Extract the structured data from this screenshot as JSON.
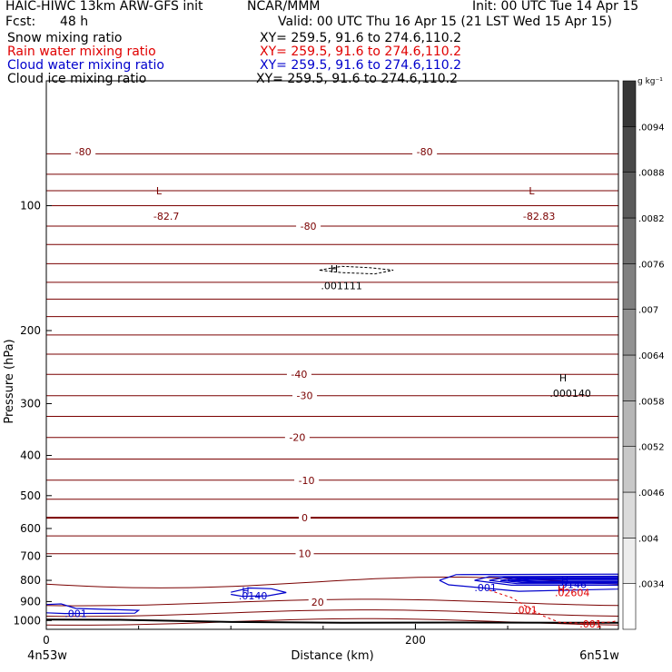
{
  "header": {
    "model": "HAIC-HIWC 13km ARW-GFS init",
    "org": "NCAR/MMM",
    "init": "Init: 00 UTC Tue 14 Apr 15",
    "fcst_label": "Fcst:",
    "fcst_value": "48 h",
    "valid": "Valid: 00 UTC Thu 16 Apr 15 (21 LST Wed 15 Apr 15)",
    "fields": [
      {
        "label": "Snow mixing ratio",
        "xy": "XY= 259.5, 91.6 to 274.6,110.2",
        "color": "#000000"
      },
      {
        "label": "Rain water mixing ratio",
        "xy": "XY= 259.5, 91.6 to 274.6,110.2",
        "color": "#e00000"
      },
      {
        "label": "Cloud water mixing ratio",
        "xy": "XY= 259.5, 91.6 to 274.6,110.2",
        "color": "#0000cc"
      },
      {
        "label": "Cloud ice mixing ratio",
        "xy": "XY= 259.5, 91.6 to 274.6,110.2",
        "color": "#000000"
      }
    ]
  },
  "chart_data": {
    "type": "contour",
    "title": "",
    "xlabel": "Distance (km)",
    "ylabel": "Pressure (hPa)",
    "xlim": [
      0,
      310
    ],
    "ylim": [
      50,
      1050
    ],
    "y_log": true,
    "x_ticks": [
      0,
      200
    ],
    "y_ticks": [
      100,
      200,
      300,
      400,
      500,
      600,
      700,
      800,
      900,
      1000
    ],
    "x_endpoints": {
      "left": "4n53w",
      "right": "6n51w"
    },
    "colors": {
      "temperature": "#7a0000",
      "cloud_water": "#0000cc",
      "rain": "#e00000",
      "ground": "#000000"
    },
    "temperature_contours": [
      {
        "p": 75,
        "label": "-80"
      },
      {
        "p": 84,
        "label": ""
      },
      {
        "p": 92,
        "label": ""
      },
      {
        "p": 100,
        "label": ""
      },
      {
        "p": 112,
        "label": "-80"
      },
      {
        "p": 124,
        "label": ""
      },
      {
        "p": 138,
        "label": ""
      },
      {
        "p": 153,
        "label": ""
      },
      {
        "p": 168,
        "label": ""
      },
      {
        "p": 185,
        "label": ""
      },
      {
        "p": 205,
        "label": ""
      },
      {
        "p": 228,
        "label": ""
      },
      {
        "p": 255,
        "label": "-40"
      },
      {
        "p": 287,
        "label": "-30"
      },
      {
        "p": 322,
        "label": ""
      },
      {
        "p": 362,
        "label": "-20"
      },
      {
        "p": 408,
        "label": ""
      },
      {
        "p": 459,
        "label": "-10"
      },
      {
        "p": 510,
        "label": ""
      },
      {
        "p": 565,
        "label": "0"
      },
      {
        "p": 625,
        "label": ""
      },
      {
        "p": 690,
        "label": "10"
      },
      {
        "p": 810,
        "label": ""
      },
      {
        "p": 905,
        "label": "20"
      },
      {
        "p": 960,
        "label": ""
      },
      {
        "p": 1008,
        "label": ""
      }
    ],
    "temperature_labels": [
      {
        "x": 20,
        "p": 74,
        "text": "-80"
      },
      {
        "x": 142,
        "p": 112,
        "text": "-80"
      },
      {
        "x": 205,
        "p": 74,
        "text": "-80"
      },
      {
        "x": 137,
        "p": 255,
        "text": "-40"
      },
      {
        "x": 140,
        "p": 287,
        "text": "-30"
      },
      {
        "x": 136,
        "p": 362,
        "text": "-20"
      },
      {
        "x": 141,
        "p": 459,
        "text": "-10"
      },
      {
        "x": 140,
        "p": 565,
        "text": "0"
      },
      {
        "x": 140,
        "p": 690,
        "text": "10"
      },
      {
        "x": 147,
        "p": 903,
        "text": "20"
      }
    ],
    "extrema_labels": [
      {
        "x": 61,
        "p": 92,
        "text": "L",
        "color": "#7a0000"
      },
      {
        "x": 65,
        "p": 106,
        "text": "-82.7",
        "color": "#7a0000"
      },
      {
        "x": 263,
        "p": 92,
        "text": "L",
        "color": "#7a0000"
      },
      {
        "x": 267,
        "p": 106,
        "text": "-82.83",
        "color": "#7a0000"
      },
      {
        "x": 156,
        "p": 142,
        "text": "H",
        "color": "#000000"
      },
      {
        "x": 160,
        "p": 156,
        "text": ".001111",
        "color": "#000000"
      },
      {
        "x": 280,
        "p": 260,
        "text": "H",
        "color": "#000000"
      },
      {
        "x": 284,
        "p": 283,
        "text": ".000140",
        "color": "#000000"
      },
      {
        "x": 108,
        "p": 848,
        "text": "H",
        "color": "#0000cc"
      },
      {
        "x": 112,
        "p": 872,
        "text": ".0140",
        "color": "#0000cc"
      },
      {
        "x": 281,
        "p": 798,
        "text": "H",
        "color": "#0000cc"
      },
      {
        "x": 285,
        "p": 818,
        "text": ".9146",
        "color": "#0000cc"
      },
      {
        "x": 279,
        "p": 840,
        "text": "H",
        "color": "#e00000"
      },
      {
        "x": 285,
        "p": 856,
        "text": ".02604",
        "color": "#e00000"
      },
      {
        "x": 238,
        "p": 833,
        "text": ".001",
        "color": "#0000cc"
      },
      {
        "x": 260,
        "p": 942,
        "text": ".001",
        "color": "#e00000"
      },
      {
        "x": 295,
        "p": 1018,
        "text": ".001",
        "color": "#e00000"
      },
      {
        "x": 16,
        "p": 962,
        "text": ".001",
        "color": "#0000cc"
      }
    ],
    "colorbar": {
      "unit": "g kg⁻¹",
      "labels": [
        ".0034",
        ".004",
        ".0046",
        ".0052",
        ".0058",
        ".0064",
        ".007",
        ".0076",
        ".0082",
        ".0088",
        ".0094"
      ]
    }
  }
}
